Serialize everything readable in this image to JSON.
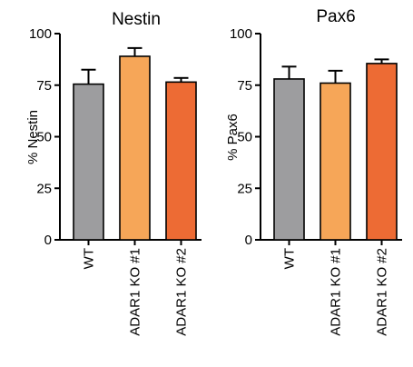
{
  "chart_data": [
    {
      "type": "bar",
      "title": "Nestin",
      "ylabel": "% Nestin",
      "xlabel": "",
      "ylim": [
        0,
        100
      ],
      "yticks": [
        0,
        25,
        50,
        75,
        100
      ],
      "categories": [
        "WT",
        "ADAR1 KO #1",
        "ADAR1 KO #2"
      ],
      "values": [
        75.5,
        89,
        76.5
      ],
      "errors": [
        7,
        4,
        2
      ],
      "colors": [
        "#9d9d9f",
        "#f6a658",
        "#ed6b34"
      ],
      "grid": false,
      "legend": "none"
    },
    {
      "type": "bar",
      "title": "Pax6",
      "ylabel": "% Pax6",
      "xlabel": "",
      "ylim": [
        0,
        100
      ],
      "yticks": [
        0,
        25,
        50,
        75,
        100
      ],
      "categories": [
        "WT",
        "ADAR1 KO #1",
        "ADAR1 KO #2"
      ],
      "values": [
        78,
        76,
        85.5
      ],
      "errors": [
        6,
        6,
        2
      ],
      "colors": [
        "#9d9d9f",
        "#f6a658",
        "#ed6b34"
      ],
      "grid": false,
      "legend": "none"
    }
  ]
}
